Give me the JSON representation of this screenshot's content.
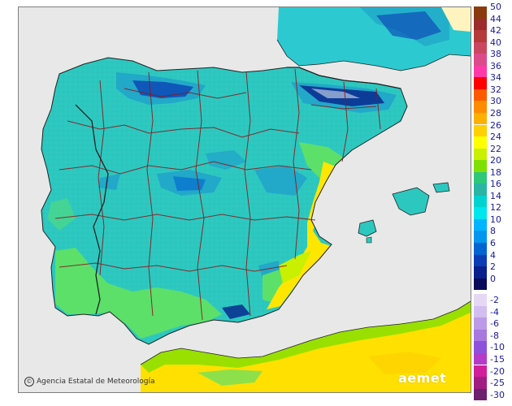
{
  "credit": {
    "symbol": "©",
    "text": "Agencia Estatal de Meteorología"
  },
  "brand": {
    "text": "aemet"
  },
  "legend": {
    "positive": [
      {
        "label": "50",
        "color": "#8b3a0e"
      },
      {
        "label": "44",
        "color": "#9c2b2b"
      },
      {
        "label": "42",
        "color": "#b53a3a"
      },
      {
        "label": "40",
        "color": "#c9475f"
      },
      {
        "label": "38",
        "color": "#dc4a8a"
      },
      {
        "label": "36",
        "color": "#ff3aa8"
      },
      {
        "label": "34",
        "color": "#ff0000"
      },
      {
        "label": "32",
        "color": "#ff5a00"
      },
      {
        "label": "30",
        "color": "#ff8c00"
      },
      {
        "label": "28",
        "color": "#ffb000"
      },
      {
        "label": "26",
        "color": "#ffd000"
      },
      {
        "label": "24",
        "color": "#ffff00"
      },
      {
        "label": "22",
        "color": "#c8f000"
      },
      {
        "label": "20",
        "color": "#7fe000"
      },
      {
        "label": "18",
        "color": "#2dc77a"
      },
      {
        "label": "16",
        "color": "#2ab5a5"
      },
      {
        "label": "14",
        "color": "#00d2d2"
      },
      {
        "label": "12",
        "color": "#00e6ef"
      },
      {
        "label": "10",
        "color": "#00b4ff"
      },
      {
        "label": "8",
        "color": "#0096f0"
      },
      {
        "label": "6",
        "color": "#0064d2"
      },
      {
        "label": "4",
        "color": "#0a3cb4"
      },
      {
        "label": "2",
        "color": "#08208c"
      },
      {
        "label": "0",
        "color": "#0a0a5a"
      }
    ],
    "negative": [
      {
        "label": "-2",
        "color": "#e6d8f5"
      },
      {
        "label": "-4",
        "color": "#d2bef0"
      },
      {
        "label": "-6",
        "color": "#bc9ae8"
      },
      {
        "label": "-8",
        "color": "#a678e0"
      },
      {
        "label": "-10",
        "color": "#8f50dc"
      },
      {
        "label": "-15",
        "color": "#b43cc8"
      },
      {
        "label": "-20",
        "color": "#d21e9a"
      },
      {
        "label": "-25",
        "color": "#a01e82"
      },
      {
        "label": "-30",
        "color": "#6e1e6e"
      }
    ]
  },
  "colors": {
    "sea": "#e8e8e8",
    "land_base": "#2cc8c0",
    "land_cool": "#22a8c8",
    "land_cold": "#3060d0",
    "land_warm": "#5ce06a",
    "land_hot": "#ffe600",
    "border_province": "#8b1a1a",
    "border_country": "#222222",
    "france": "#2ccad0",
    "africa": "#ffe000"
  }
}
